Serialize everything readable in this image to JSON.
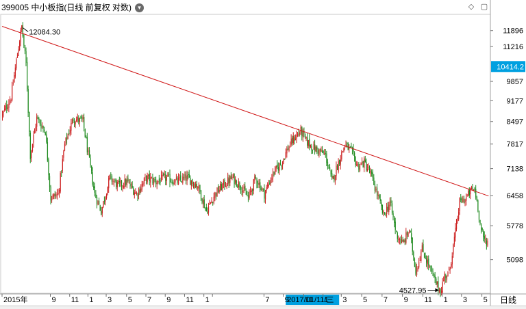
{
  "header": {
    "title": "399005 中小板指(日线 前复权 对数)",
    "dropdown_glyph": "▾",
    "diamond_glyph": "◇",
    "square_glyph": "▢"
  },
  "chart_data": {
    "type": "candlestick",
    "title": "399005 中小板指(日线 前复权 对数)",
    "scale": "log",
    "ylim": [
      4500,
      12600
    ],
    "y_ticks": [
      "11896",
      "11216",
      "10414.2",
      "9857",
      "9177",
      "8497",
      "7817",
      "7138",
      "6458",
      "5778",
      "5098"
    ],
    "current_price": "10414.2",
    "annotations": {
      "high_label": "12084.30",
      "low_label": "4527.95"
    },
    "x_axis_labels": [
      {
        "text": "2015年",
        "i": 0
      },
      {
        "text": "9",
        "i": 45
      },
      {
        "text": "11",
        "i": 63
      },
      {
        "text": "1",
        "i": 80
      },
      {
        "text": "3",
        "i": 97
      },
      {
        "text": "5",
        "i": 116
      },
      {
        "text": "7",
        "i": 134
      },
      {
        "text": "9",
        "i": 152
      },
      {
        "text": "11",
        "i": 170
      },
      {
        "text": "1",
        "i": 188
      },
      {
        "text": "2017/01/11/三",
        "i": 196,
        "highlight": true
      },
      {
        "text": "7",
        "i": 244
      },
      {
        "text": "9",
        "i": 262
      },
      {
        "text": "11",
        "i": 281
      },
      {
        "text": "1",
        "i": 299
      },
      {
        "text": "3",
        "i": 316
      },
      {
        "text": "5",
        "i": 335
      },
      {
        "text": "7",
        "i": 354
      },
      {
        "text": "9",
        "i": 373
      },
      {
        "text": "11",
        "i": 392
      },
      {
        "text": "1",
        "i": 410
      },
      {
        "text": "3",
        "i": 428
      },
      {
        "text": "5",
        "i": 447
      }
    ],
    "period_label": "日线",
    "trendline": [
      [
        12084.3,
        0
      ],
      [
        6450,
        452
      ]
    ],
    "anchors": [
      [
        0,
        8700
      ],
      [
        8,
        9300
      ],
      [
        15,
        11200
      ],
      [
        18,
        12084
      ],
      [
        22,
        10500
      ],
      [
        26,
        7500
      ],
      [
        32,
        8600
      ],
      [
        40,
        8200
      ],
      [
        45,
        6400
      ],
      [
        52,
        6500
      ],
      [
        58,
        7800
      ],
      [
        66,
        8600
      ],
      [
        75,
        8500
      ],
      [
        80,
        7500
      ],
      [
        86,
        6500
      ],
      [
        92,
        6100
      ],
      [
        100,
        6900
      ],
      [
        108,
        6700
      ],
      [
        116,
        6800
      ],
      [
        125,
        6500
      ],
      [
        134,
        6900
      ],
      [
        143,
        6800
      ],
      [
        152,
        6900
      ],
      [
        162,
        6800
      ],
      [
        172,
        6900
      ],
      [
        182,
        6700
      ],
      [
        190,
        6100
      ],
      [
        198,
        6500
      ],
      [
        205,
        6700
      ],
      [
        214,
        6900
      ],
      [
        222,
        6700
      ],
      [
        229,
        6400
      ],
      [
        236,
        6900
      ],
      [
        244,
        6500
      ],
      [
        252,
        7000
      ],
      [
        260,
        7300
      ],
      [
        266,
        7700
      ],
      [
        272,
        8000
      ],
      [
        278,
        8200
      ],
      [
        283,
        7900
      ],
      [
        290,
        7700
      ],
      [
        296,
        7600
      ],
      [
        301,
        7500
      ],
      [
        307,
        6800
      ],
      [
        313,
        7300
      ],
      [
        319,
        7800
      ],
      [
        325,
        7600
      ],
      [
        331,
        7200
      ],
      [
        337,
        7300
      ],
      [
        343,
        7000
      ],
      [
        349,
        6500
      ],
      [
        355,
        6000
      ],
      [
        361,
        6300
      ],
      [
        367,
        5600
      ],
      [
        373,
        5400
      ],
      [
        379,
        5700
      ],
      [
        385,
        4900
      ],
      [
        391,
        5300
      ],
      [
        397,
        5000
      ],
      [
        403,
        4700
      ],
      [
        408,
        4528
      ],
      [
        412,
        4800
      ],
      [
        416,
        4850
      ],
      [
        421,
        5500
      ],
      [
        426,
        6300
      ],
      [
        432,
        6400
      ],
      [
        437,
        6600
      ],
      [
        440,
        6600
      ],
      [
        443,
        6200
      ],
      [
        445,
        5800
      ],
      [
        448,
        5500
      ],
      [
        452,
        5450
      ]
    ],
    "candle_count": 453,
    "seed": 12345
  },
  "colors": {
    "up": "#cc2222",
    "down": "#1e8a1e",
    "trendline": "#d01818",
    "highlight_bg": "#00a0e0",
    "grid": "#c8c8c8"
  }
}
